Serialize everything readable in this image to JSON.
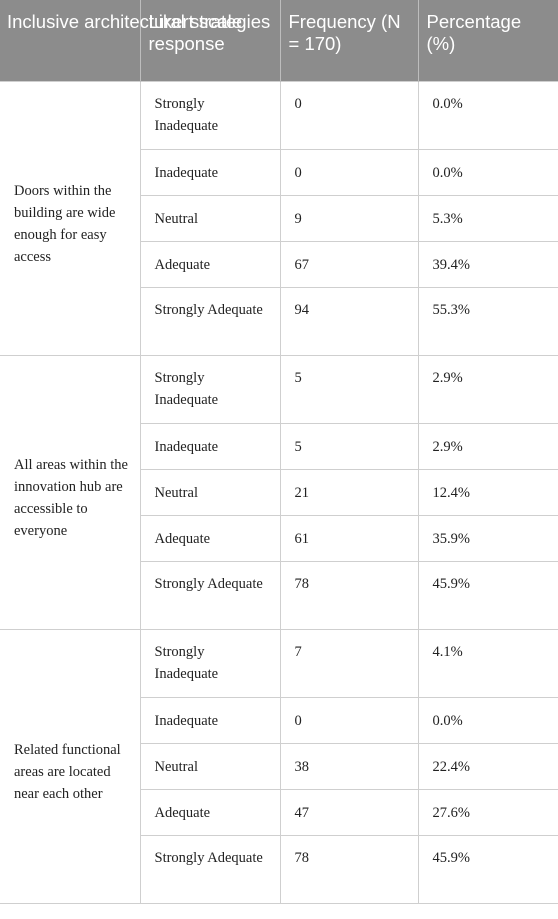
{
  "table": {
    "headers": [
      "Inclusive architectural strategies",
      "Likert scale response",
      "Frequency (N = 170)",
      "Percentage (%)"
    ],
    "groups": [
      {
        "strategy": "Doors within the building are wide enough for easy access",
        "rows": [
          {
            "response": "Strongly Inadequate",
            "frequency": "0",
            "percentage": "0.0%"
          },
          {
            "response": "Inadequate",
            "frequency": "0",
            "percentage": "0.0%"
          },
          {
            "response": "Neutral",
            "frequency": "9",
            "percentage": "5.3%"
          },
          {
            "response": "Adequate",
            "frequency": "67",
            "percentage": "39.4%"
          },
          {
            "response": "Strongly Adequate",
            "frequency": "94",
            "percentage": "55.3%"
          }
        ]
      },
      {
        "strategy": "All areas within the innovation hub are accessible to everyone",
        "rows": [
          {
            "response": "Strongly Inadequate",
            "frequency": "5",
            "percentage": "2.9%"
          },
          {
            "response": "Inadequate",
            "frequency": "5",
            "percentage": "2.9%"
          },
          {
            "response": "Neutral",
            "frequency": "21",
            "percentage": "12.4%"
          },
          {
            "response": "Adequate",
            "frequency": "61",
            "percentage": "35.9%"
          },
          {
            "response": "Strongly Adequate",
            "frequency": "78",
            "percentage": "45.9%"
          }
        ]
      },
      {
        "strategy": "Related functional areas are located near each other",
        "rows": [
          {
            "response": "Strongly Inadequate",
            "frequency": "7",
            "percentage": "4.1%"
          },
          {
            "response": "Inadequate",
            "frequency": "0",
            "percentage": "0.0%"
          },
          {
            "response": "Neutral",
            "frequency": "38",
            "percentage": "22.4%"
          },
          {
            "response": "Adequate",
            "frequency": "47",
            "percentage": "27.6%"
          },
          {
            "response": "Strongly Adequate",
            "frequency": "78",
            "percentage": "45.9%"
          }
        ]
      }
    ]
  }
}
